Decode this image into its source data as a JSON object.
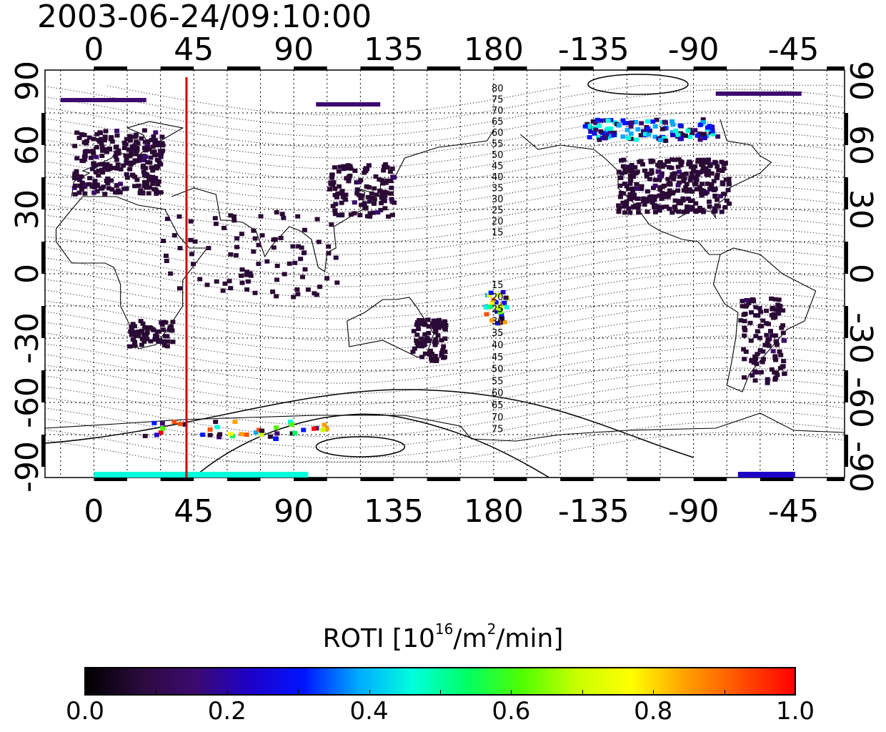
{
  "title": "2003-06-24/09:10:00",
  "map": {
    "x_ticks": [
      "0",
      "45",
      "90",
      "135",
      "180",
      "-135",
      "-90",
      "-45"
    ],
    "x_tick_lons": [
      0,
      45,
      90,
      135,
      180,
      -135,
      -90,
      -45
    ],
    "y_ticks_left": [
      "90",
      "60",
      "30",
      "0",
      "-30",
      "-60",
      "-90"
    ],
    "y_ticks_right": [
      "90",
      "60",
      "30",
      "0",
      "-30",
      "-60",
      "-90"
    ],
    "y_tick_lats": [
      90,
      60,
      30,
      0,
      -30,
      -60,
      -90
    ],
    "lon_range": [
      -22,
      338
    ],
    "lat_range": [
      -95,
      95
    ],
    "red_line_lon": 45,
    "contour_labels_north": [
      "80",
      "75",
      "70",
      "65",
      "60",
      "55",
      "50",
      "45",
      "40",
      "35",
      "30",
      "25",
      "20",
      "15"
    ],
    "contour_labels_south": [
      "15",
      "20",
      "25",
      "30",
      "35",
      "40",
      "45",
      "50",
      "55",
      "60",
      "65",
      "70",
      "75"
    ]
  },
  "colorbar": {
    "title_main": "ROTI  [10",
    "title_sup1": "16",
    "title_mid": "/m",
    "title_sup2": "2",
    "title_end": "/min]",
    "ticks": [
      "0.0",
      "0.2",
      "0.4",
      "0.6",
      "0.8",
      "1.0"
    ],
    "range": [
      0.0,
      1.0
    ],
    "colors": [
      "#000000",
      "#2a0a3c",
      "#3c0a6e",
      "#1e00c8",
      "#0014ff",
      "#00aaff",
      "#00ffdc",
      "#00ff64",
      "#50ff00",
      "#c8ff00",
      "#ffff00",
      "#ffa000",
      "#ff5000",
      "#ff0000"
    ]
  },
  "colors": {
    "dark_patch": "#2b0a33",
    "red_line": "#cc0000",
    "coast": "#000000"
  }
}
